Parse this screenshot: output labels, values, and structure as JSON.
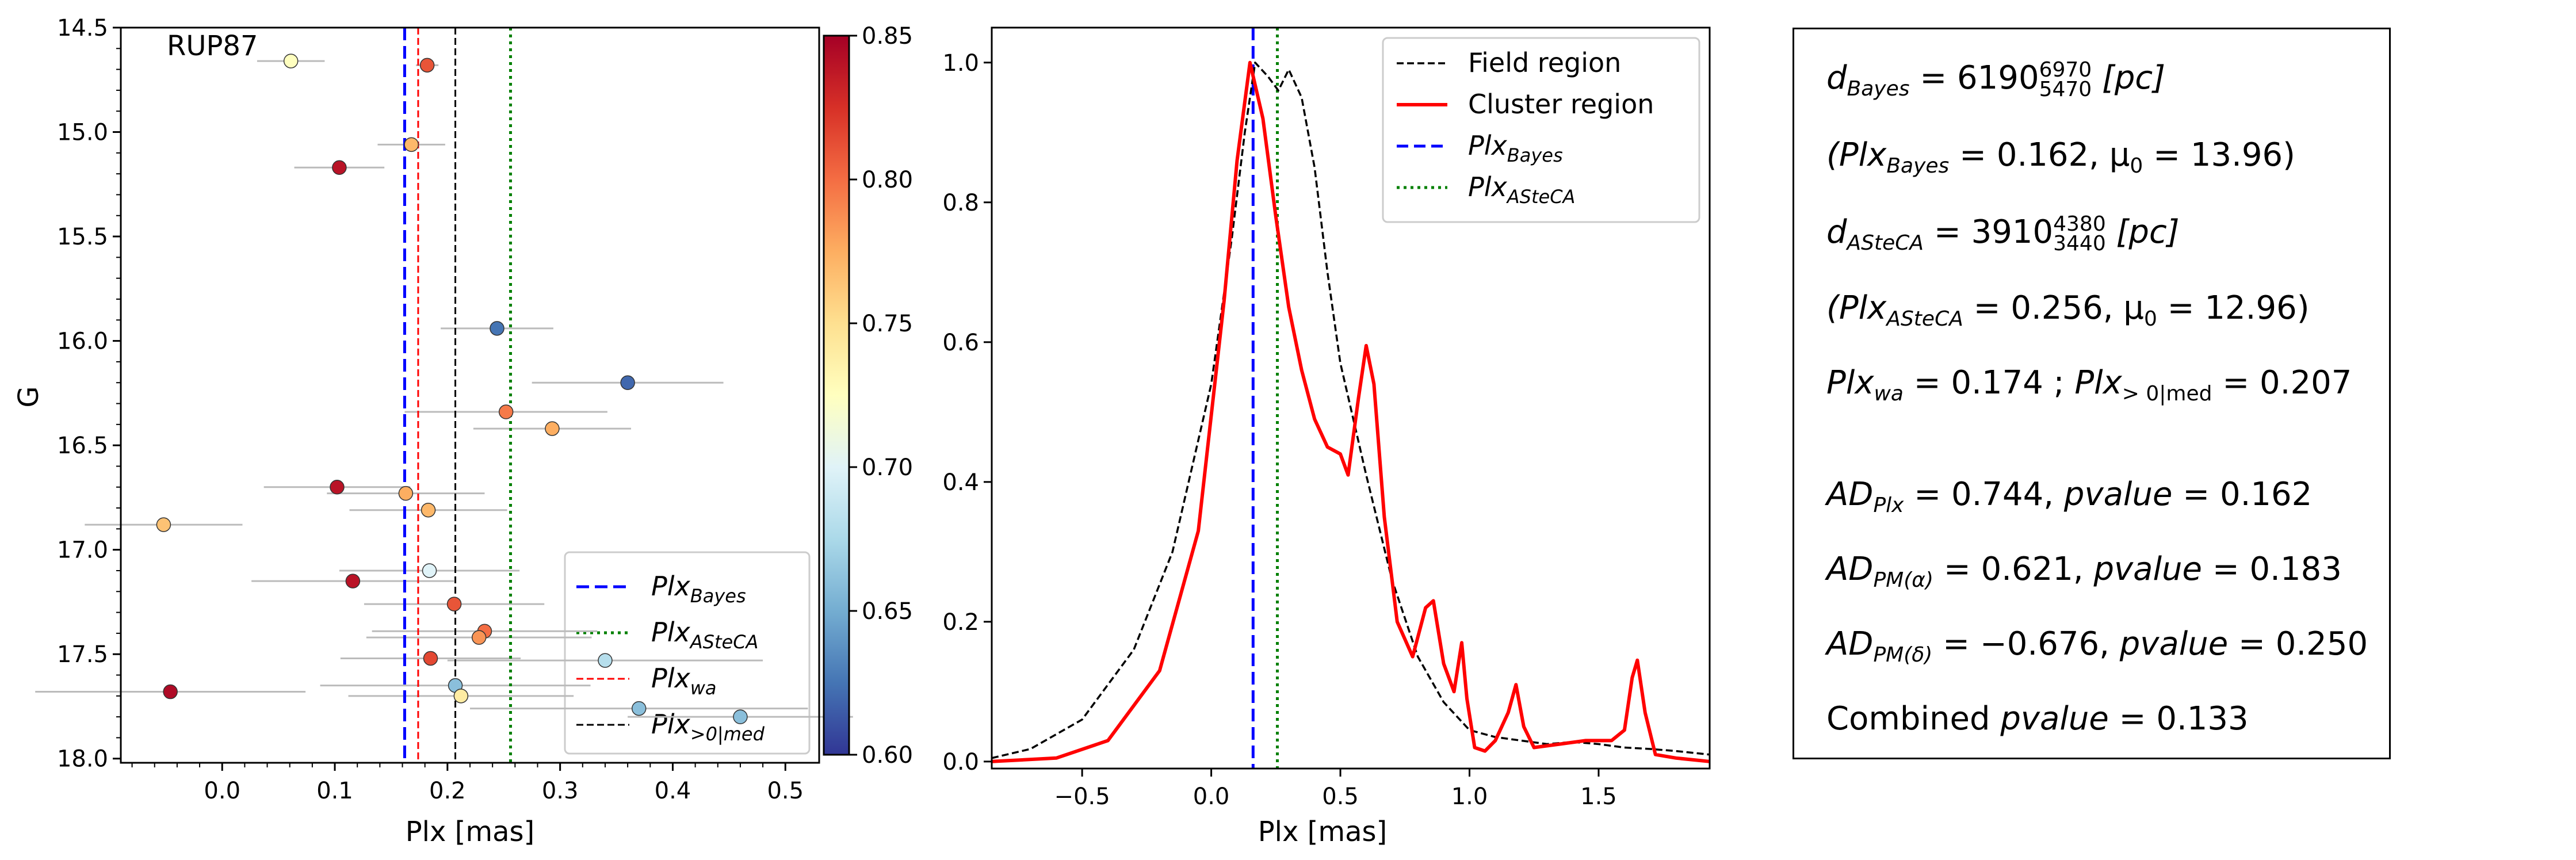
{
  "chart_data": [
    {
      "type": "scatter",
      "annotation": "RUP87",
      "xlabel": "Plx [mas]",
      "ylabel": "G",
      "xlim": [
        -0.09,
        0.53
      ],
      "ylim": [
        18.02,
        14.5
      ],
      "y_inverted": true,
      "xticks": [
        0.0,
        0.1,
        0.2,
        0.3,
        0.4,
        0.5
      ],
      "xtick_labels": [
        "0.0",
        "0.1",
        "0.2",
        "0.3",
        "0.4",
        "0.5"
      ],
      "yticks": [
        14.5,
        15.0,
        15.5,
        16.0,
        16.5,
        17.0,
        17.5,
        18.0
      ],
      "ytick_labels": [
        "14.5",
        "15.0",
        "15.5",
        "16.0",
        "16.5",
        "17.0",
        "17.5",
        "18.0"
      ],
      "colorbar": {
        "range": [
          0.6,
          0.85
        ],
        "ticks": [
          0.6,
          0.65,
          0.7,
          0.75,
          0.8,
          0.85
        ],
        "tick_labels": [
          "0.60",
          "0.65",
          "0.70",
          "0.75",
          "0.80",
          "0.85"
        ]
      },
      "points": [
        {
          "plx": 0.061,
          "G": 14.66,
          "err": 0.03,
          "p": 0.725
        },
        {
          "plx": 0.182,
          "G": 14.68,
          "err": 0.01,
          "p": 0.81
        },
        {
          "plx": 0.168,
          "G": 15.06,
          "err": 0.03,
          "p": 0.77
        },
        {
          "plx": 0.104,
          "G": 15.17,
          "err": 0.04,
          "p": 0.84
        },
        {
          "plx": 0.244,
          "G": 15.94,
          "err": 0.05,
          "p": 0.625
        },
        {
          "plx": 0.36,
          "G": 16.2,
          "err": 0.085,
          "p": 0.62
        },
        {
          "plx": 0.252,
          "G": 16.34,
          "err": 0.09,
          "p": 0.795
        },
        {
          "plx": 0.293,
          "G": 16.42,
          "err": 0.07,
          "p": 0.775
        },
        {
          "plx": 0.102,
          "G": 16.7,
          "err": 0.065,
          "p": 0.84
        },
        {
          "plx": 0.163,
          "G": 16.73,
          "err": 0.07,
          "p": 0.775
        },
        {
          "plx": 0.183,
          "G": 16.81,
          "err": 0.07,
          "p": 0.77
        },
        {
          "plx": -0.052,
          "G": 16.88,
          "err": 0.07,
          "p": 0.765
        },
        {
          "plx": 0.184,
          "G": 17.1,
          "err": 0.08,
          "p": 0.7
        },
        {
          "plx": 0.116,
          "G": 17.15,
          "err": 0.09,
          "p": 0.84
        },
        {
          "plx": 0.206,
          "G": 17.26,
          "err": 0.08,
          "p": 0.81
        },
        {
          "plx": 0.233,
          "G": 17.39,
          "err": 0.1,
          "p": 0.8
        },
        {
          "plx": 0.228,
          "G": 17.42,
          "err": 0.1,
          "p": 0.785
        },
        {
          "plx": 0.185,
          "G": 17.52,
          "err": 0.08,
          "p": 0.815
        },
        {
          "plx": 0.34,
          "G": 17.53,
          "err": 0.14,
          "p": 0.68
        },
        {
          "plx": 0.207,
          "G": 17.65,
          "err": 0.12,
          "p": 0.66
        },
        {
          "plx": 0.212,
          "G": 17.7,
          "err": 0.1,
          "p": 0.74
        },
        {
          "plx": -0.046,
          "G": 17.68,
          "err": 0.12,
          "p": 0.845
        },
        {
          "plx": 0.37,
          "G": 17.76,
          "err": 0.15,
          "p": 0.66
        },
        {
          "plx": 0.46,
          "G": 17.8,
          "err": 0.1,
          "p": 0.66
        }
      ],
      "vlines": [
        {
          "x": 0.162,
          "color": "#0000ff",
          "style": "dashed",
          "label": "Plx",
          "sub": "Bayes"
        },
        {
          "x": 0.256,
          "color": "#008000",
          "style": "dotted",
          "label": "Plx",
          "sub": "ASteCA"
        },
        {
          "x": 0.174,
          "color": "#ff0000",
          "style": "dashed-thin",
          "label": "Plx",
          "sub": "wa"
        },
        {
          "x": 0.207,
          "color": "#000000",
          "style": "dashed-thin",
          "label": "Plx",
          "sub": ">0|med"
        }
      ],
      "legend_location": "lower-right"
    },
    {
      "type": "line",
      "xlabel": "Plx [mas]",
      "ylabel": "",
      "xlim": [
        -0.85,
        1.93
      ],
      "ylim": [
        -0.01,
        1.05
      ],
      "xticks": [
        -0.5,
        0.0,
        0.5,
        1.0,
        1.5
      ],
      "xtick_labels": [
        "−0.5",
        "0.0",
        "0.5",
        "1.0",
        "1.5"
      ],
      "yticks": [
        0.0,
        0.2,
        0.4,
        0.6,
        0.8,
        1.0
      ],
      "ytick_labels": [
        "0.0",
        "0.2",
        "0.4",
        "0.6",
        "0.8",
        "1.0"
      ],
      "series": [
        {
          "name": "Field region",
          "color": "#000000",
          "style": "dashed",
          "x": [
            -0.85,
            -0.7,
            -0.5,
            -0.3,
            -0.15,
            0.0,
            0.08,
            0.13,
            0.17,
            0.22,
            0.26,
            0.3,
            0.35,
            0.4,
            0.45,
            0.5,
            0.55,
            0.6,
            0.7,
            0.8,
            0.9,
            1.0,
            1.1,
            1.2,
            1.3,
            1.4,
            1.5,
            1.6,
            1.7,
            1.8,
            1.93
          ],
          "y": [
            0.005,
            0.018,
            0.06,
            0.16,
            0.3,
            0.54,
            0.75,
            0.9,
            1.0,
            0.98,
            0.96,
            0.99,
            0.95,
            0.85,
            0.7,
            0.57,
            0.49,
            0.41,
            0.26,
            0.15,
            0.085,
            0.045,
            0.035,
            0.03,
            0.025,
            0.028,
            0.025,
            0.02,
            0.018,
            0.015,
            0.01
          ]
        },
        {
          "name": "Cluster region",
          "color": "#ff0000",
          "style": "solid",
          "x": [
            -0.85,
            -0.6,
            -0.4,
            -0.2,
            -0.05,
            0.05,
            0.1,
            0.15,
            0.2,
            0.25,
            0.3,
            0.35,
            0.4,
            0.45,
            0.5,
            0.53,
            0.57,
            0.6,
            0.63,
            0.67,
            0.72,
            0.78,
            0.83,
            0.86,
            0.9,
            0.94,
            0.97,
            0.99,
            1.02,
            1.06,
            1.1,
            1.15,
            1.18,
            1.21,
            1.25,
            1.35,
            1.45,
            1.55,
            1.6,
            1.63,
            1.65,
            1.68,
            1.72,
            1.8,
            1.93
          ],
          "y": [
            0.0,
            0.005,
            0.03,
            0.13,
            0.33,
            0.66,
            0.86,
            1.0,
            0.92,
            0.78,
            0.65,
            0.56,
            0.49,
            0.45,
            0.44,
            0.41,
            0.52,
            0.595,
            0.54,
            0.35,
            0.2,
            0.15,
            0.22,
            0.23,
            0.14,
            0.1,
            0.17,
            0.09,
            0.02,
            0.015,
            0.03,
            0.07,
            0.11,
            0.05,
            0.02,
            0.025,
            0.03,
            0.03,
            0.045,
            0.12,
            0.145,
            0.07,
            0.01,
            0.005,
            0.0
          ]
        }
      ],
      "vlines": [
        {
          "x": 0.162,
          "color": "#0000ff",
          "style": "dashed",
          "label": "Plx",
          "sub": "Bayes"
        },
        {
          "x": 0.256,
          "color": "#008000",
          "style": "dotted",
          "label": "Plx",
          "sub": "ASteCA"
        }
      ],
      "legend_location": "top-right"
    }
  ],
  "info_box": {
    "d_bayes_label": "d",
    "d_bayes_sub": "Bayes",
    "d_bayes_value": "= 6190",
    "d_bayes_sup": "6970",
    "d_bayes_low": "5470",
    "d_bayes_unit": "[pc]",
    "plx_bayes_line": "(Plx",
    "plx_bayes_sub": "Bayes",
    "plx_bayes_rest": "= 0.162,  μ",
    "plx_bayes_mu_sub": "0",
    "plx_bayes_mu": "= 13.96)",
    "d_asteca_label": "d",
    "d_asteca_sub": "ASteCA",
    "d_asteca_value": "= 3910",
    "d_asteca_sup": "4380",
    "d_asteca_low": "3440",
    "d_asteca_unit": "[pc]",
    "plx_asteca_line": "(Plx",
    "plx_asteca_sub": "ASteCA",
    "plx_asteca_rest": "= 0.256,  μ",
    "plx_asteca_mu_sub": "0",
    "plx_asteca_mu": "= 12.96)",
    "plx_wa_label": "Plx",
    "plx_wa_sub": "wa",
    "plx_wa_value": "= 0.174 ; ",
    "plx_med_label": "Plx",
    "plx_med_sub": "> 0|med",
    "plx_med_value": "= 0.207",
    "ad_plx_label": "AD",
    "ad_plx_sub": "Plx",
    "ad_plx_value": "= 0.744,  ",
    "ad_plx_p": "pvalue",
    "ad_plx_pval": "= 0.162",
    "ad_pma_label": "AD",
    "ad_pma_sub": "PM(α)",
    "ad_pma_value": "= 0.621,  ",
    "ad_pma_p": "pvalue",
    "ad_pma_pval": "= 0.183",
    "ad_pmd_label": "AD",
    "ad_pmd_sub": "PM(δ)",
    "ad_pmd_value": "= −0.676,  ",
    "ad_pmd_p": "pvalue",
    "ad_pmd_pval": "= 0.250",
    "combined_label": "Combined ",
    "combined_p": "pvalue",
    "combined_value": "= 0.133"
  }
}
